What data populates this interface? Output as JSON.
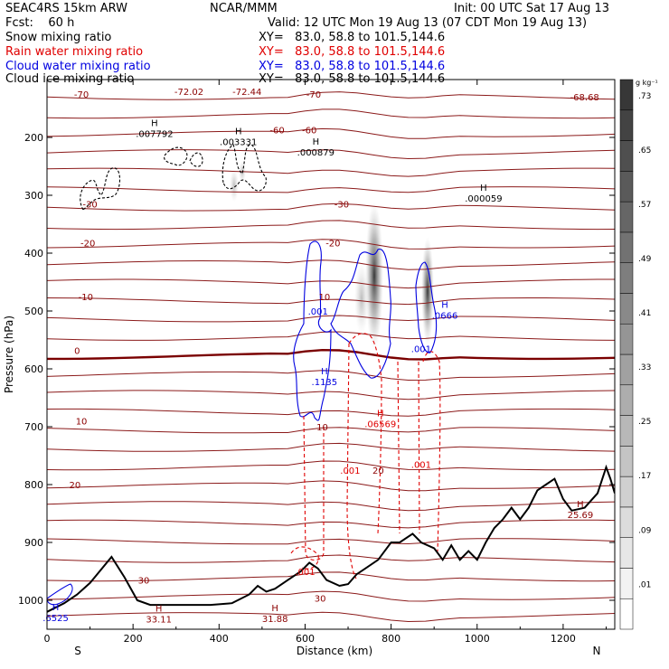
{
  "header": {
    "model": "SEAC4RS 15km ARW",
    "org": "NCAR/MMM",
    "init": "Init: 00 UTC Sat 17 Aug 13",
    "fcst": "Fcst:    60 h",
    "valid": "Valid: 12 UTC Mon 19 Aug 13 (07 CDT Mon 19 Aug 13)",
    "fields": [
      {
        "name": "Snow mixing ratio",
        "xy": "XY=   83.0, 58.8 to 101.5,144.6",
        "color": "#000000"
      },
      {
        "name": "Rain water mixing ratio",
        "xy": "XY=   83.0, 58.8 to 101.5,144.6",
        "color": "#e00000"
      },
      {
        "name": "Cloud water mixing ratio",
        "xy": "XY=   83.0, 58.8 to 101.5,144.6",
        "color": "#0000e0"
      },
      {
        "name": "Cloud ice mixing ratio",
        "xy": "XY=   83.0, 58.8 to 101.5,144.6",
        "color": "#000000"
      }
    ]
  },
  "chart_data": {
    "type": "cross-section",
    "xlabel": "Distance (km)",
    "ylabel": "Pressure (hPa)",
    "xlim": [
      0,
      1320
    ],
    "ylim": [
      1050,
      100
    ],
    "x_ticks": [
      0,
      200,
      400,
      600,
      800,
      1000,
      1200
    ],
    "y_ticks": [
      200,
      300,
      400,
      500,
      600,
      700,
      800,
      900,
      1000
    ],
    "y_tick_labels_shown": [
      "200",
      "300",
      "400",
      "500",
      "600",
      "700",
      "800",
      "900",
      "1000"
    ],
    "direction_labels": {
      "left": "S",
      "right": "N"
    },
    "colorbar": {
      "unit": "g kg⁻¹",
      "tick_labels": [
        ".01",
        ".09",
        ".17",
        ".25",
        ".33",
        ".41",
        ".49",
        ".57",
        ".65",
        ".73"
      ],
      "tick_values": [
        0.01,
        0.09,
        0.17,
        0.25,
        0.33,
        0.41,
        0.49,
        0.57,
        0.65,
        0.73
      ],
      "levels": 18
    },
    "temperature_contours_C": [
      -70,
      -60,
      -30,
      -20,
      -10,
      0,
      10,
      20,
      30
    ],
    "temperature_labels": [
      {
        "text": "-70",
        "x": 80,
        "p": 125
      },
      {
        "text": "-72.02",
        "x": 330,
        "p": 120
      },
      {
        "text": "-72.44",
        "x": 465,
        "p": 120
      },
      {
        "text": "-70",
        "x": 620,
        "p": 125
      },
      {
        "text": "-68.68",
        "x": 1250,
        "p": 130
      },
      {
        "text": "-60",
        "x": 535,
        "p": 187
      },
      {
        "text": "-60",
        "x": 610,
        "p": 187
      },
      {
        "text": "-30",
        "x": 100,
        "p": 315
      },
      {
        "text": "-30",
        "x": 685,
        "p": 315
      },
      {
        "text": "-20",
        "x": 95,
        "p": 382
      },
      {
        "text": "-20",
        "x": 665,
        "p": 382
      },
      {
        "text": "-10",
        "x": 90,
        "p": 475
      },
      {
        "text": "10",
        "x": 645,
        "p": 475
      },
      {
        "text": "0",
        "x": 70,
        "p": 568
      },
      {
        "text": "10",
        "x": 80,
        "p": 690
      },
      {
        "text": "10",
        "x": 640,
        "p": 700
      },
      {
        "text": "20",
        "x": 65,
        "p": 800
      },
      {
        "text": "20",
        "x": 770,
        "p": 775
      },
      {
        "text": "30",
        "x": 225,
        "p": 965
      },
      {
        "text": "30",
        "x": 635,
        "p": 996
      }
    ],
    "highlow_labels": [
      {
        "text": ".007792",
        "x": 250,
        "p": 196,
        "color": "#000000"
      },
      {
        "text": ".003331",
        "x": 445,
        "p": 210,
        "color": "#000000"
      },
      {
        "text": ".000879",
        "x": 625,
        "p": 228,
        "color": "#000000"
      },
      {
        "text": ".000059",
        "x": 1015,
        "p": 308,
        "color": "#000000"
      },
      {
        "text": ".1135",
        "x": 645,
        "p": 625,
        "color": "#0000e0"
      },
      {
        "text": ".0666",
        "x": 925,
        "p": 510,
        "color": "#0000e0"
      },
      {
        "text": ".06569",
        "x": 775,
        "p": 698,
        "color": "#e00000"
      },
      {
        "text": "33.11",
        "x": 260,
        "p": 1035,
        "color": "#8b0000"
      },
      {
        "text": "31.88",
        "x": 530,
        "p": 1034,
        "color": "#8b0000"
      },
      {
        "text": "25.69",
        "x": 1240,
        "p": 855,
        "color": "#8b0000"
      },
      {
        "text": ".6525",
        "x": 20,
        "p": 1033,
        "color": "#0000e0"
      }
    ],
    "contour_value_labels": [
      {
        "text": ".001",
        "x": 630,
        "p": 500,
        "color": "#0000e0"
      },
      {
        "text": ".001",
        "x": 870,
        "p": 565,
        "color": "#0000e0"
      },
      {
        "text": ".001",
        "x": 705,
        "p": 775,
        "color": "#e00000"
      },
      {
        "text": ".001",
        "x": 870,
        "p": 765,
        "color": "#e00000"
      },
      {
        "text": ".001",
        "x": 600,
        "p": 950,
        "color": "#e00000"
      }
    ],
    "terrain": {
      "x": [
        0,
        40,
        70,
        100,
        150,
        180,
        210,
        240,
        280,
        330,
        380,
        430,
        470,
        490,
        510,
        530,
        560,
        590,
        610,
        630,
        650,
        680,
        700,
        720,
        740,
        770,
        800,
        820,
        850,
        870,
        900,
        920,
        940,
        960,
        980,
        1000,
        1020,
        1040,
        1060,
        1080,
        1100,
        1120,
        1140,
        1160,
        1180,
        1200,
        1220,
        1250,
        1280,
        1300,
        1310,
        1320
      ],
      "p": [
        1020,
        1005,
        990,
        970,
        925,
        960,
        1000,
        1008,
        1008,
        1008,
        1008,
        1005,
        990,
        975,
        985,
        980,
        965,
        950,
        935,
        945,
        965,
        975,
        972,
        955,
        945,
        930,
        900,
        900,
        885,
        900,
        910,
        930,
        905,
        930,
        915,
        930,
        900,
        875,
        860,
        840,
        860,
        840,
        810,
        800,
        790,
        825,
        845,
        840,
        815,
        770,
        790,
        815
      ]
    }
  }
}
